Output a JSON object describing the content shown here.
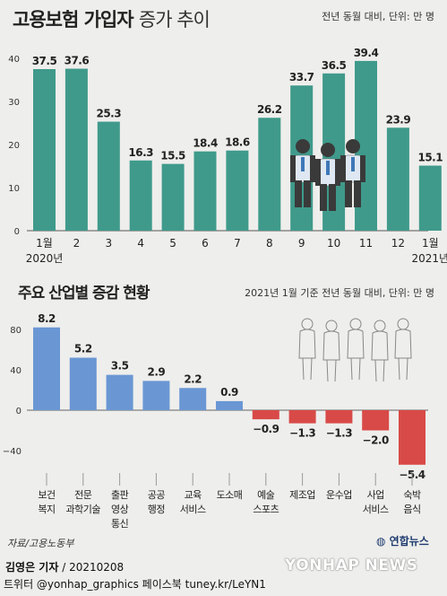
{
  "chart_data": [
    {
      "type": "bar",
      "title": "고용보험 가입자",
      "title_suffix": "증가 추이",
      "unit_note": "전년 동월 대비, 단위: 만 명",
      "categories": [
        "1월",
        "2",
        "3",
        "4",
        "5",
        "6",
        "7",
        "8",
        "9",
        "10",
        "11",
        "12",
        "1월"
      ],
      "year_labels": {
        "first": "2020년",
        "last": "2021년"
      },
      "values": [
        37.5,
        37.6,
        25.3,
        16.3,
        15.5,
        18.4,
        18.6,
        26.2,
        33.7,
        36.5,
        39.4,
        23.9,
        15.1
      ],
      "value_labels": [
        "37.5",
        "37.6",
        "25.3",
        "16.3",
        "15.5",
        "18.4",
        "18.6",
        "26.2",
        "33.7",
        "36.5",
        "39.4",
        "23.9",
        "15.1"
      ],
      "yticks": [
        0,
        10,
        20,
        30,
        40
      ],
      "ylim": [
        0,
        42
      ],
      "bar_color": "#3f9a8b",
      "grid": false
    },
    {
      "type": "bar",
      "title": "주요 산업별 증감 현황",
      "unit_note": "2021년 1월 기준 전년 동월 대비, 단위: 만 명",
      "categories": [
        [
          "보건",
          "복지"
        ],
        [
          "전문",
          "과학기술"
        ],
        [
          "출판",
          "영상",
          "통신"
        ],
        [
          "공공",
          "행정"
        ],
        [
          "교육",
          "서비스"
        ],
        [
          "도소매"
        ],
        [
          "예술",
          "스포츠"
        ],
        [
          "제조업"
        ],
        [
          "운수업"
        ],
        [
          "사업",
          "서비스"
        ],
        [
          "숙박",
          "음식"
        ]
      ],
      "values": [
        8.2,
        5.2,
        3.5,
        2.9,
        2.2,
        0.9,
        -0.9,
        -1.3,
        -1.3,
        -2.0,
        -5.4
      ],
      "value_labels": [
        "8.2",
        "5.2",
        "3.5",
        "2.9",
        "2.2",
        "0.9",
        "−0.9",
        "−1.3",
        "−1.3",
        "−2.0",
        "−5.4"
      ],
      "yticks": [
        80,
        40,
        0,
        -40
      ],
      "ytick_labels": [
        "80",
        "40",
        "0",
        "−40"
      ],
      "positive_color": "#6a97d4",
      "negative_color": "#d84a47",
      "grid": false
    }
  ],
  "footer": {
    "source": "자료/고용노동부",
    "agency_logo": "연합뉴스",
    "reporter": "김영은 기자",
    "date": "20210208",
    "social": "트위터 @yonhap_graphics  페이스북 tuney.kr/LeYN1",
    "watermark": "YONHAP NEWS"
  },
  "colors": {
    "background": "#eeeeec",
    "text": "#222222"
  },
  "icons": [
    "office-workers-icon",
    "people-silhouettes-icon",
    "yonhap-logo-icon"
  ]
}
